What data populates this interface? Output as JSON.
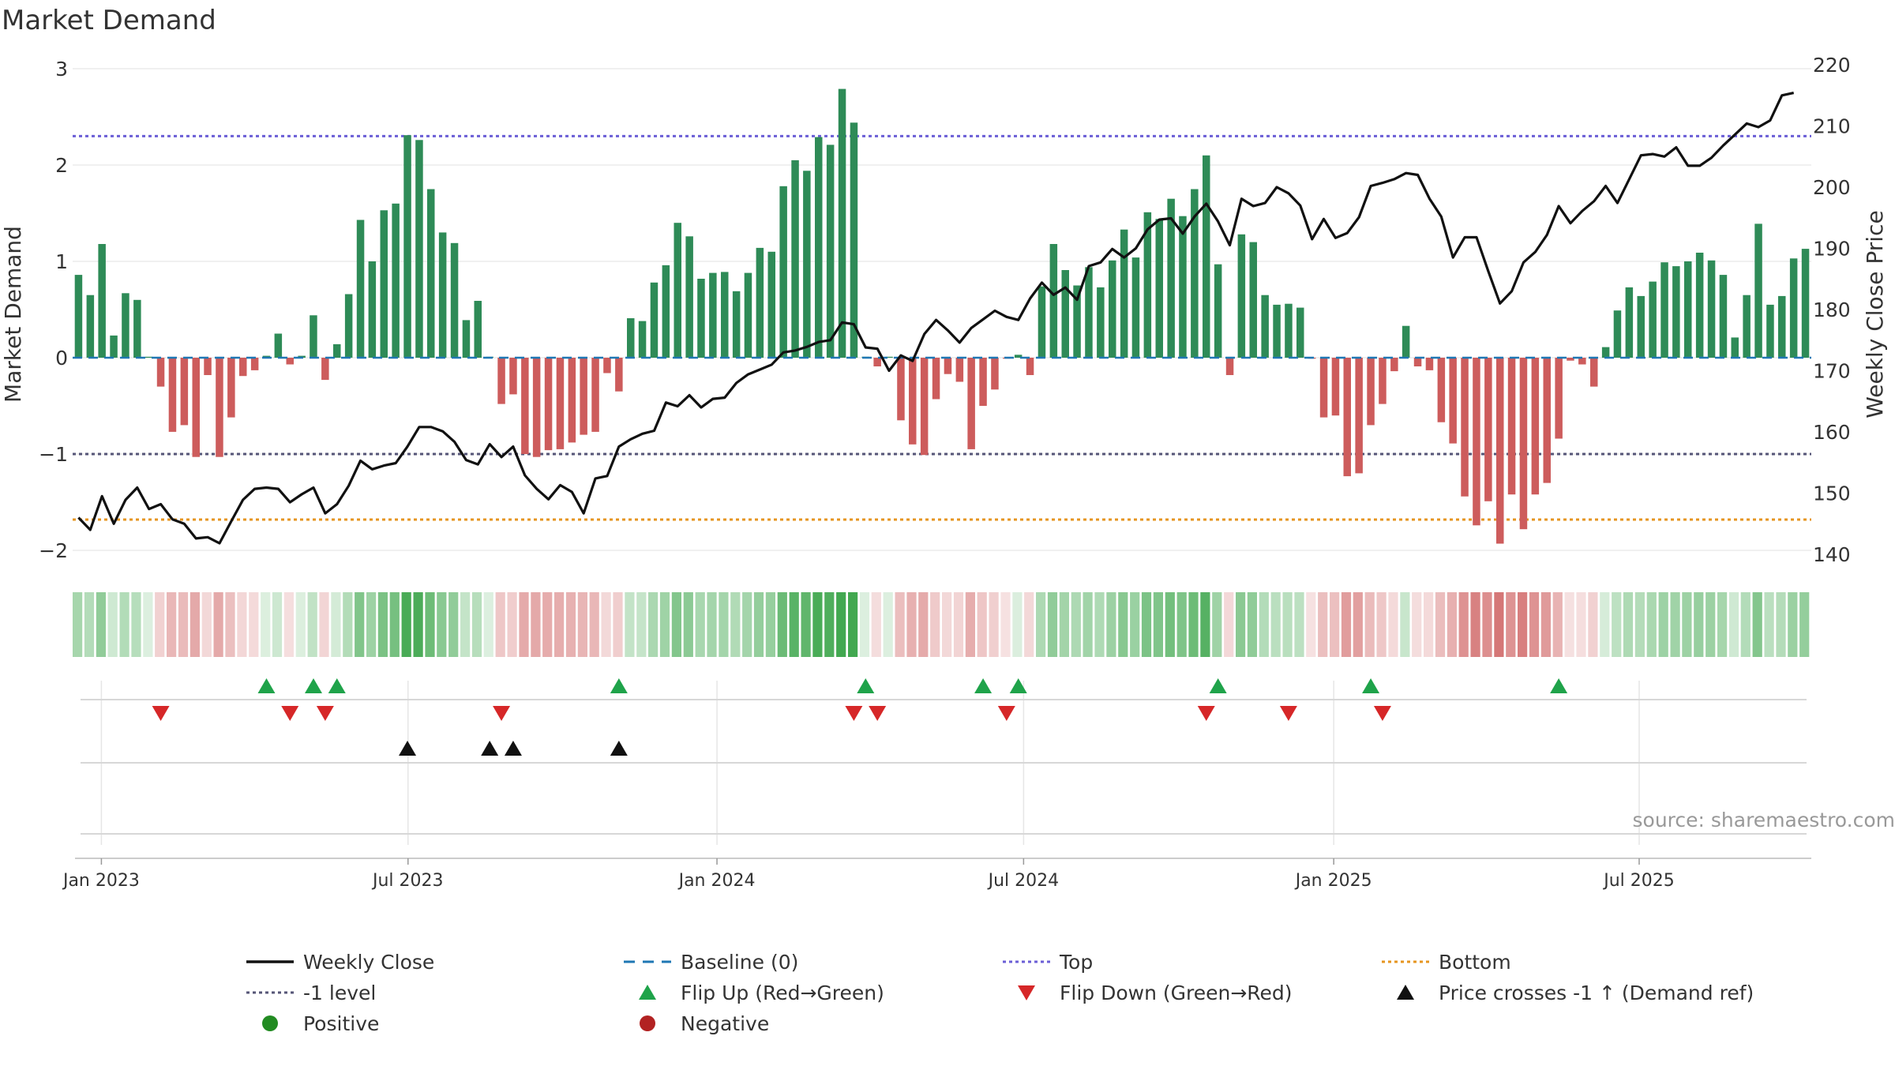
{
  "title": "Market Demand",
  "source": "source: sharemaestro.com",
  "colors": {
    "positive": "#2e8b57",
    "negative": "#cd5c5c",
    "price": "#111111",
    "top": "#6b5fd6",
    "minus_one": "#555577",
    "bottom": "#e69520",
    "baseline": "#1f77b4",
    "flip_up": "#1fa34a",
    "flip_down": "#d62728",
    "cross": "#111111",
    "grid": "#ebebeb"
  },
  "chart_data": {
    "type": "bar",
    "title": "Market Demand",
    "xlabel": "",
    "ylabel": "Market Demand",
    "y2label": "Weekly Close Price",
    "ylim": [
      -2.2,
      3.0
    ],
    "y2lim": [
      138,
      220
    ],
    "yticks": [
      -2,
      -1,
      0,
      1,
      2,
      3
    ],
    "y2ticks": [
      140,
      150,
      160,
      170,
      180,
      190,
      200,
      210,
      220
    ],
    "xticks": [
      "Jan 2023",
      "Jul 2023",
      "Jan 2024",
      "Jul 2024",
      "Jan 2025",
      "Jul 2025"
    ],
    "reference_lines": {
      "top": 2.3,
      "minus_one": -1.0,
      "bottom": -1.68,
      "baseline": 0
    },
    "demand": [
      0.86,
      0.65,
      1.18,
      0.23,
      0.67,
      0.6,
      0.01,
      -0.3,
      -0.77,
      -0.7,
      -1.03,
      -0.18,
      -1.03,
      -0.62,
      -0.19,
      -0.13,
      0.02,
      0.25,
      -0.07,
      0.02,
      0.44,
      -0.23,
      0.14,
      0.66,
      1.43,
      1.0,
      1.53,
      1.6,
      2.31,
      2.26,
      1.75,
      1.3,
      1.19,
      0.39,
      0.59,
      0.01,
      -0.48,
      -0.38,
      -1.0,
      -1.03,
      -0.96,
      -0.95,
      -0.88,
      -0.8,
      -0.77,
      -0.16,
      -0.35,
      0.41,
      0.38,
      0.78,
      0.96,
      1.4,
      1.26,
      0.82,
      0.88,
      0.89,
      0.69,
      0.88,
      1.14,
      1.1,
      1.78,
      2.05,
      1.94,
      2.29,
      2.21,
      2.79,
      2.44,
      0.01,
      -0.09,
      0.01,
      -0.65,
      -0.9,
      -1.01,
      -0.43,
      -0.17,
      -0.25,
      -0.95,
      -0.5,
      -0.33,
      -0.01,
      0.03,
      -0.18,
      0.74,
      1.18,
      0.91,
      0.75,
      0.94,
      0.73,
      1.01,
      1.33,
      1.04,
      1.51,
      1.44,
      1.65,
      1.47,
      1.75,
      2.1,
      0.97,
      -0.18,
      1.28,
      1.2,
      0.65,
      0.55,
      0.56,
      0.52,
      -0.01,
      -0.62,
      -0.6,
      -1.23,
      -1.2,
      -0.7,
      -0.48,
      -0.14,
      0.33,
      -0.09,
      -0.13,
      -0.67,
      -0.89,
      -1.44,
      -1.74,
      -1.49,
      -1.93,
      -1.42,
      -1.78,
      -1.42,
      -1.3,
      -0.84,
      -0.03,
      -0.07,
      -0.3,
      0.11,
      0.49,
      0.73,
      0.64,
      0.79,
      0.99,
      0.95,
      1.0,
      1.09,
      1.01,
      0.86,
      0.21,
      0.65,
      1.39,
      0.55,
      0.64,
      1.03,
      1.13
    ],
    "price": [
      146.0,
      144.0,
      149.5,
      145.0,
      148.9,
      150.9,
      147.4,
      148.2,
      145.7,
      145.0,
      142.6,
      142.8,
      141.8,
      145.4,
      148.9,
      150.7,
      150.9,
      150.7,
      148.5,
      149.8,
      150.9,
      146.7,
      148.2,
      151.2,
      155.3,
      153.9,
      154.5,
      154.9,
      157.6,
      160.8,
      160.8,
      160.1,
      158.4,
      155.4,
      154.7,
      158.0,
      155.9,
      157.6,
      152.9,
      150.7,
      149.0,
      151.3,
      150.2,
      146.7,
      152.4,
      152.8,
      157.6,
      158.8,
      159.7,
      160.2,
      164.8,
      164.2,
      166.0,
      164.0,
      165.4,
      165.6,
      168.0,
      169.4,
      170.2,
      171.0,
      173.0,
      173.3,
      173.9,
      174.7,
      175.0,
      177.9,
      177.6,
      173.8,
      173.6,
      170.0,
      172.5,
      171.6,
      176.0,
      178.3,
      176.6,
      174.6,
      177.0,
      178.4,
      179.8,
      178.8,
      178.3,
      181.8,
      184.4,
      182.4,
      183.6,
      181.6,
      187.1,
      187.7,
      189.9,
      188.5,
      190.0,
      193.1,
      194.7,
      194.9,
      192.4,
      195.2,
      197.3,
      194.4,
      190.5,
      198.1,
      196.9,
      197.4,
      200.0,
      199.0,
      197.0,
      191.5,
      194.8,
      191.7,
      192.5,
      195.1,
      200.2,
      200.7,
      201.3,
      202.3,
      202.0,
      198.1,
      195.2,
      188.5,
      191.8,
      191.8,
      186.3,
      181.0,
      183.0,
      187.7,
      189.4,
      192.2,
      196.9,
      194.1,
      196.1,
      197.7,
      200.2,
      197.4,
      201.3,
      205.2,
      205.4,
      205.0,
      206.5,
      203.5,
      203.5,
      204.8,
      206.8,
      208.6,
      210.4,
      209.8,
      210.9,
      215.0,
      215.4
    ]
  },
  "flip_up_weeks": [
    16,
    20,
    22,
    46,
    67,
    77,
    80,
    97,
    110,
    126
  ],
  "flip_down_weeks": [
    7,
    18,
    21,
    36,
    66,
    68,
    79,
    96,
    103,
    111
  ],
  "cross_weeks": [
    28,
    35,
    37,
    46
  ],
  "xaxis": {
    "labels": [
      "Jan 2023",
      "Jul 2023",
      "Jan 2024",
      "Jul 2024",
      "Jan 2025",
      "Jul 2025"
    ]
  },
  "legend": [
    {
      "key": "weekly-close",
      "label": "Weekly Close",
      "symbol": "solid-line",
      "color": "#111111"
    },
    {
      "key": "baseline",
      "label": "Baseline (0)",
      "symbol": "dashed-line",
      "color": "#1f77b4"
    },
    {
      "key": "top",
      "label": "Top",
      "symbol": "dotted-line",
      "color": "#6b5fd6"
    },
    {
      "key": "bottom",
      "label": "Bottom",
      "symbol": "dotted-line",
      "color": "#e69520"
    },
    {
      "key": "minus-one-level",
      "label": "-1 level",
      "symbol": "dotted-line",
      "color": "#555577"
    },
    {
      "key": "flip-up",
      "label": "Flip Up (Red→Green)",
      "symbol": "triangle-up",
      "color": "#1fa34a"
    },
    {
      "key": "flip-down",
      "label": "Flip Down (Green→Red)",
      "symbol": "triangle-down",
      "color": "#d62728"
    },
    {
      "key": "price-crosses",
      "label": "Price crosses -1 ↑ (Demand ref)",
      "symbol": "triangle-up",
      "color": "#111111"
    },
    {
      "key": "positive",
      "label": "Positive",
      "symbol": "circle",
      "color": "#228b22"
    },
    {
      "key": "negative",
      "label": "Negative",
      "symbol": "circle",
      "color": "#b22222"
    }
  ]
}
